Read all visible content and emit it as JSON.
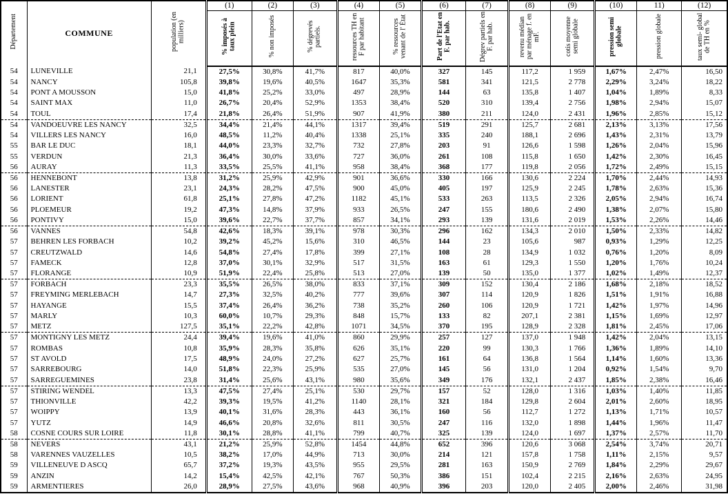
{
  "table": {
    "corner_headers": {
      "departement": "Département",
      "commune": "COMMUNE",
      "population": "population (en milliers)"
    },
    "column_numbers": [
      "(1)",
      "(2)",
      "(3)",
      "(4)",
      "(5)",
      "(6)",
      "(7)",
      "(8)",
      "(9)",
      "(10)",
      "11)",
      "(12)"
    ],
    "column_headers": [
      "% imposés à taux plein",
      "% non imposés",
      "% dégrevés partiels.",
      "ressources TH en F par habitant",
      "% ressources venant de l' État",
      "Part de l'Etat en F. par hab.",
      "Dégrev partiels en F. par hab.",
      "revenu médian par ménage f. en mF.",
      "cotis moyenne semi globale",
      "pression semi globale",
      "pression globale",
      "taux semi- global de TH en %"
    ],
    "rows": [
      [
        "54",
        "LUNEVILLE",
        "21,1",
        "27,5%",
        "30,8%",
        "41,7%",
        "817",
        "40,0%",
        "327",
        "145",
        "117,2",
        "1 959",
        "1,67%",
        "2,47%",
        "16,50"
      ],
      [
        "54",
        "NANCY",
        "105,8",
        "39,8%",
        "19,6%",
        "40,5%",
        "1647",
        "35,3%",
        "581",
        "341",
        "121,5",
        "2 778",
        "2,29%",
        "3,24%",
        "18,22"
      ],
      [
        "54",
        "PONT A MOUSSON",
        "15,0",
        "41,8%",
        "25,2%",
        "33,0%",
        "497",
        "28,9%",
        "144",
        "63",
        "135,8",
        "1 407",
        "1,04%",
        "1,89%",
        "8,33"
      ],
      [
        "54",
        "SAINT MAX",
        "11,0",
        "26,7%",
        "20,4%",
        "52,9%",
        "1353",
        "38,4%",
        "520",
        "310",
        "139,4",
        "2 756",
        "1,98%",
        "2,94%",
        "15,07"
      ],
      [
        "54",
        "TOUL",
        "17,4",
        "21,8%",
        "26,4%",
        "51,9%",
        "907",
        "41,9%",
        "380",
        "211",
        "124,0",
        "2 431",
        "1,96%",
        "2,85%",
        "15,12"
      ],
      [
        "54",
        "VANDOEUVRE LES NANCY",
        "32,5",
        "34,4%",
        "21,4%",
        "44,1%",
        "1317",
        "39,4%",
        "519",
        "291",
        "125,7",
        "2 681",
        "2,13%",
        "3,13%",
        "17,56"
      ],
      [
        "54",
        "VILLERS LES NANCY",
        "16,0",
        "48,5%",
        "11,2%",
        "40,4%",
        "1338",
        "25,1%",
        "335",
        "240",
        "188,1",
        "2 696",
        "1,43%",
        "2,31%",
        "13,79"
      ],
      [
        "55",
        "BAR LE DUC",
        "18,1",
        "44,0%",
        "23,3%",
        "32,7%",
        "732",
        "27,8%",
        "203",
        "91",
        "126,6",
        "1 598",
        "1,26%",
        "2,04%",
        "15,96"
      ],
      [
        "55",
        "VERDUN",
        "21,3",
        "36,4%",
        "30,0%",
        "33,6%",
        "727",
        "36,0%",
        "261",
        "108",
        "115,8",
        "1 650",
        "1,42%",
        "2,30%",
        "16,45"
      ],
      [
        "56",
        "AURAY",
        "11,3",
        "33,5%",
        "25,5%",
        "41,1%",
        "958",
        "38,4%",
        "368",
        "177",
        "119,8",
        "2 056",
        "1,72%",
        "2,49%",
        "15,15"
      ],
      [
        "56",
        "HENNEBONT",
        "13,8",
        "31,2%",
        "25,9%",
        "42,9%",
        "901",
        "36,6%",
        "330",
        "166",
        "130,6",
        "2 224",
        "1,70%",
        "2,44%",
        "14,93"
      ],
      [
        "56",
        "LANESTER",
        "23,1",
        "24,3%",
        "28,2%",
        "47,5%",
        "900",
        "45,0%",
        "405",
        "197",
        "125,9",
        "2 245",
        "1,78%",
        "2,63%",
        "15,36"
      ],
      [
        "56",
        "LORIENT",
        "61,8",
        "25,1%",
        "27,8%",
        "47,2%",
        "1182",
        "45,1%",
        "533",
        "263",
        "113,5",
        "2 326",
        "2,05%",
        "2,94%",
        "16,74"
      ],
      [
        "56",
        "PLOEMEUR",
        "19,2",
        "47,3%",
        "14,8%",
        "37,9%",
        "933",
        "26,5%",
        "247",
        "155",
        "180,6",
        "2 490",
        "1,38%",
        "2,07%",
        "15,80"
      ],
      [
        "56",
        "PONTIVY",
        "15,0",
        "39,6%",
        "22,7%",
        "37,7%",
        "857",
        "34,1%",
        "293",
        "139",
        "131,6",
        "2 019",
        "1,53%",
        "2,26%",
        "14,46"
      ],
      [
        "56",
        "VANNES",
        "54,8",
        "42,6%",
        "18,3%",
        "39,1%",
        "978",
        "30,3%",
        "296",
        "162",
        "134,3",
        "2 010",
        "1,50%",
        "2,33%",
        "14,82"
      ],
      [
        "57",
        "BEHREN LES FORBACH",
        "10,2",
        "39,2%",
        "45,2%",
        "15,6%",
        "310",
        "46,5%",
        "144",
        "23",
        "105,6",
        "987",
        "0,93%",
        "1,29%",
        "12,25"
      ],
      [
        "57",
        "CREUTZWALD",
        "14,6",
        "54,8%",
        "27,4%",
        "17,8%",
        "399",
        "27,1%",
        "108",
        "28",
        "134,9",
        "1 032",
        "0,76%",
        "1,20%",
        "8,09"
      ],
      [
        "57",
        "FAMECK",
        "12,8",
        "37,0%",
        "30,1%",
        "32,9%",
        "517",
        "31,5%",
        "163",
        "61",
        "129,3",
        "1 550",
        "1,20%",
        "1,76%",
        "10,24"
      ],
      [
        "57",
        "FLORANGE",
        "10,9",
        "51,9%",
        "22,4%",
        "25,8%",
        "513",
        "27,0%",
        "139",
        "50",
        "135,0",
        "1 377",
        "1,02%",
        "1,49%",
        "12,37"
      ],
      [
        "57",
        "FORBACH",
        "23,3",
        "35,5%",
        "26,5%",
        "38,0%",
        "833",
        "37,1%",
        "309",
        "152",
        "130,4",
        "2 186",
        "1,68%",
        "2,18%",
        "18,52"
      ],
      [
        "57",
        "FREYMING MERLEBACH",
        "14,7",
        "27,3%",
        "32,5%",
        "40,2%",
        "777",
        "39,6%",
        "307",
        "114",
        "120,9",
        "1 826",
        "1,51%",
        "1,91%",
        "16,88"
      ],
      [
        "57",
        "HAYANGE",
        "15,5",
        "37,4%",
        "26,4%",
        "36,2%",
        "738",
        "35,2%",
        "260",
        "106",
        "120,9",
        "1 721",
        "1,42%",
        "1,97%",
        "14,96"
      ],
      [
        "57",
        "MARLY",
        "10,3",
        "60,0%",
        "10,7%",
        "29,3%",
        "848",
        "15,7%",
        "133",
        "82",
        "207,1",
        "2 381",
        "1,15%",
        "1,69%",
        "12,97"
      ],
      [
        "57",
        "METZ",
        "127,5",
        "35,1%",
        "22,2%",
        "42,8%",
        "1071",
        "34,5%",
        "370",
        "195",
        "128,9",
        "2 328",
        "1,81%",
        "2,45%",
        "17,06"
      ],
      [
        "57",
        "MONTIGNY LES METZ",
        "24,4",
        "39,4%",
        "19,6%",
        "41,0%",
        "860",
        "29,9%",
        "257",
        "127",
        "137,0",
        "1 948",
        "1,42%",
        "2,04%",
        "13,15"
      ],
      [
        "57",
        "ROMBAS",
        "10,8",
        "35,9%",
        "28,3%",
        "35,8%",
        "626",
        "35,1%",
        "220",
        "99",
        "130,3",
        "1 766",
        "1,36%",
        "1,89%",
        "14,10"
      ],
      [
        "57",
        "ST AVOLD",
        "17,5",
        "48,9%",
        "24,0%",
        "27,2%",
        "627",
        "25,7%",
        "161",
        "64",
        "136,8",
        "1 564",
        "1,14%",
        "1,60%",
        "13,36"
      ],
      [
        "57",
        "SARREBOURG",
        "14,0",
        "51,8%",
        "22,3%",
        "25,9%",
        "535",
        "27,0%",
        "145",
        "56",
        "131,0",
        "1 204",
        "0,92%",
        "1,54%",
        "9,70"
      ],
      [
        "57",
        "SARREGUEMINES",
        "23,8",
        "31,4%",
        "25,6%",
        "43,1%",
        "980",
        "35,6%",
        "349",
        "176",
        "132,1",
        "2 437",
        "1,85%",
        "2,38%",
        "16,46"
      ],
      [
        "57",
        "STIRING WENDEL",
        "13,3",
        "47,5%",
        "27,4%",
        "25,1%",
        "530",
        "29,7%",
        "157",
        "52",
        "128,0",
        "1 316",
        "1,03%",
        "1,40%",
        "11,85"
      ],
      [
        "57",
        "THIONVILLE",
        "42,2",
        "39,3%",
        "19,5%",
        "41,2%",
        "1140",
        "28,1%",
        "321",
        "184",
        "129,8",
        "2 604",
        "2,01%",
        "2,60%",
        "18,95"
      ],
      [
        "57",
        "WOIPPY",
        "13,9",
        "40,1%",
        "31,6%",
        "28,3%",
        "443",
        "36,1%",
        "160",
        "56",
        "112,7",
        "1 272",
        "1,13%",
        "1,71%",
        "10,57"
      ],
      [
        "57",
        "YUTZ",
        "14,9",
        "46,6%",
        "20,8%",
        "32,6%",
        "811",
        "30,5%",
        "247",
        "116",
        "132,0",
        "1 898",
        "1,44%",
        "1,96%",
        "11,47"
      ],
      [
        "58",
        "COSNE COURS SUR LOIRE",
        "11,8",
        "30,1%",
        "28,8%",
        "41,1%",
        "799",
        "40,7%",
        "325",
        "139",
        "124,0",
        "1 697",
        "1,37%",
        "2,57%",
        "11,70"
      ],
      [
        "58",
        "NEVERS",
        "43,1",
        "21,2%",
        "25,9%",
        "52,8%",
        "1454",
        "44,8%",
        "652",
        "396",
        "120,6",
        "3 068",
        "2,54%",
        "3,74%",
        "20,71"
      ],
      [
        "58",
        "VARENNES VAUZELLES",
        "10,5",
        "38,2%",
        "17,0%",
        "44,9%",
        "713",
        "30,0%",
        "214",
        "121",
        "157,8",
        "1 758",
        "1,11%",
        "2,15%",
        "9,57"
      ],
      [
        "59",
        "VILLENEUVE D ASCQ",
        "65,7",
        "37,2%",
        "19,3%",
        "43,5%",
        "955",
        "29,5%",
        "281",
        "163",
        "150,9",
        "2 769",
        "1,84%",
        "2,29%",
        "29,67"
      ],
      [
        "59",
        "ANZIN",
        "14,2",
        "15,4%",
        "42,5%",
        "42,1%",
        "767",
        "50,3%",
        "386",
        "151",
        "102,4",
        "2 215",
        "2,16%",
        "2,63%",
        "24,95"
      ],
      [
        "59",
        "ARMENTIERES",
        "26,0",
        "28,9%",
        "27,5%",
        "43,6%",
        "968",
        "40,9%",
        "396",
        "203",
        "120,0",
        "2 405",
        "2,00%",
        "2,46%",
        "31,98"
      ]
    ]
  }
}
